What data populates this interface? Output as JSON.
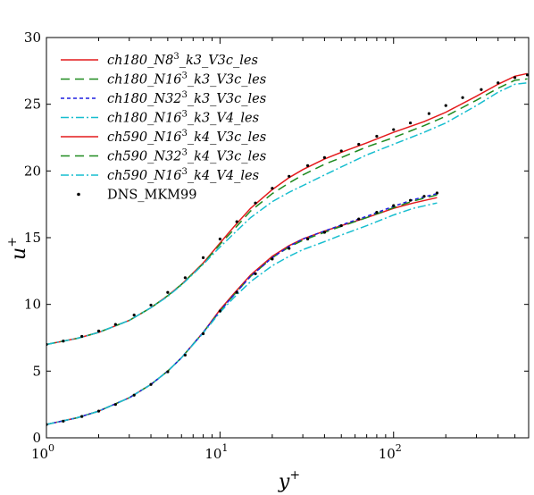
{
  "chart_data": {
    "type": "line",
    "title": "",
    "xlabel": "y",
    "xlabel_sup": "+",
    "ylabel": "u",
    "ylabel_sup": "+",
    "xscale": "log",
    "xlim": [
      1,
      600
    ],
    "ylim": [
      0,
      30
    ],
    "x_tick_labels": [
      {
        "value": 1,
        "base": "10",
        "exp": "0"
      },
      {
        "value": 10,
        "base": "10",
        "exp": "1"
      },
      {
        "value": 100,
        "base": "10",
        "exp": "2"
      }
    ],
    "y_ticks": [
      0,
      5,
      10,
      15,
      20,
      25,
      30
    ],
    "legend_position": "top-left",
    "grid": false,
    "series": [
      {
        "name": "ch180_N8³_k3_V3c_les",
        "color": "#e41a1c",
        "dash": "solid",
        "x": [
          1,
          1.5,
          2,
          3,
          4,
          5,
          6,
          8,
          10,
          12,
          15,
          20,
          25,
          30,
          40,
          50,
          70,
          100,
          130,
          178
        ],
        "y": [
          1.0,
          1.5,
          2.0,
          3.0,
          4.0,
          5.0,
          6.0,
          7.9,
          9.6,
          10.8,
          12.2,
          13.6,
          14.4,
          14.9,
          15.5,
          15.9,
          16.5,
          17.2,
          17.6,
          18.0
        ]
      },
      {
        "name": "ch180_N16³_k3_V3c_les",
        "color": "#1f8a1f",
        "dash": "10,6",
        "x": [
          1,
          1.5,
          2,
          3,
          4,
          5,
          6,
          8,
          10,
          12,
          15,
          20,
          25,
          30,
          40,
          50,
          70,
          100,
          130,
          178
        ],
        "y": [
          1.0,
          1.5,
          2.0,
          3.0,
          4.0,
          5.0,
          6.0,
          7.9,
          9.5,
          10.7,
          12.1,
          13.5,
          14.3,
          14.8,
          15.4,
          15.85,
          16.5,
          17.25,
          17.75,
          18.2
        ]
      },
      {
        "name": "ch180_N32³_k3_V3c_les",
        "color": "#1f1fe0",
        "dash": "4,3",
        "x": [
          1,
          1.5,
          2,
          3,
          4,
          5,
          6,
          8,
          10,
          12,
          15,
          20,
          25,
          30,
          40,
          50,
          70,
          100,
          130,
          178
        ],
        "y": [
          1.0,
          1.5,
          2.0,
          3.0,
          4.0,
          5.0,
          6.0,
          7.9,
          9.5,
          10.7,
          12.1,
          13.5,
          14.35,
          14.9,
          15.5,
          15.95,
          16.6,
          17.35,
          17.85,
          18.3
        ]
      },
      {
        "name": "ch180_N16³_k3_V4_les",
        "color": "#17becf",
        "dash": "9,3,2,3",
        "x": [
          1,
          1.5,
          2,
          3,
          4,
          5,
          6,
          8,
          10,
          12,
          15,
          20,
          25,
          30,
          40,
          50,
          70,
          100,
          130,
          178
        ],
        "y": [
          1.0,
          1.5,
          2.0,
          3.0,
          4.0,
          5.0,
          6.0,
          7.85,
          9.4,
          10.5,
          11.7,
          12.9,
          13.6,
          14.1,
          14.7,
          15.2,
          15.9,
          16.7,
          17.2,
          17.6
        ]
      },
      {
        "name": "ch590_N16³_k4_V3c_les",
        "color": "#e41a1c",
        "dash": "solid",
        "x": [
          1,
          1.5,
          2,
          3,
          4,
          5,
          6,
          8,
          10,
          12,
          15,
          20,
          25,
          30,
          40,
          50,
          70,
          100,
          150,
          200,
          300,
          400,
          500,
          590
        ],
        "y": [
          7.0,
          7.45,
          7.9,
          8.8,
          9.75,
          10.65,
          11.5,
          13.1,
          14.6,
          15.8,
          17.2,
          18.6,
          19.5,
          20.1,
          20.9,
          21.4,
          22.1,
          22.9,
          23.7,
          24.4,
          25.6,
          26.5,
          27.1,
          27.3
        ]
      },
      {
        "name": "ch590_N32³_k4_V3c_les",
        "color": "#1f8a1f",
        "dash": "10,6",
        "x": [
          1,
          1.5,
          2,
          3,
          4,
          5,
          6,
          8,
          10,
          12,
          15,
          20,
          25,
          30,
          40,
          50,
          70,
          100,
          150,
          200,
          300,
          400,
          500,
          590
        ],
        "y": [
          7.0,
          7.45,
          7.9,
          8.8,
          9.75,
          10.65,
          11.5,
          13.05,
          14.5,
          15.6,
          17.0,
          18.3,
          19.1,
          19.7,
          20.5,
          21.0,
          21.8,
          22.5,
          23.4,
          24.1,
          25.3,
          26.2,
          26.8,
          26.9
        ]
      },
      {
        "name": "ch590_N16³_k4_V4_les",
        "color": "#17becf",
        "dash": "9,3,2,3",
        "x": [
          1,
          1.5,
          2,
          3,
          4,
          5,
          6,
          8,
          10,
          12,
          15,
          20,
          25,
          30,
          40,
          50,
          70,
          100,
          150,
          200,
          300,
          400,
          500,
          590
        ],
        "y": [
          7.0,
          7.45,
          7.9,
          8.8,
          9.75,
          10.6,
          11.45,
          13.0,
          14.3,
          15.3,
          16.5,
          17.7,
          18.4,
          18.9,
          19.7,
          20.3,
          21.2,
          22.0,
          22.9,
          23.6,
          24.9,
          25.9,
          26.5,
          26.6
        ]
      },
      {
        "name": "DNS_MKM99",
        "color": "#000000",
        "marker": "dot",
        "points_180": {
          "x": [
            1,
            1.25,
            1.6,
            2.0,
            2.5,
            3.2,
            4,
            5,
            6.3,
            8,
            10,
            12.5,
            16,
            20,
            25,
            32,
            40,
            50,
            63,
            80,
            100,
            125,
            150,
            178
          ],
          "y": [
            1.0,
            1.25,
            1.6,
            2.0,
            2.5,
            3.2,
            4.0,
            4.95,
            6.2,
            7.8,
            9.5,
            10.9,
            12.3,
            13.4,
            14.2,
            14.9,
            15.4,
            15.9,
            16.4,
            16.9,
            17.4,
            17.8,
            18.1,
            18.35
          ]
        },
        "points_590": {
          "x": [
            1,
            1.25,
            1.6,
            2.0,
            2.5,
            3.2,
            4,
            5,
            6.3,
            8,
            10,
            12.5,
            16,
            20,
            25,
            32,
            40,
            50,
            63,
            80,
            100,
            125,
            160,
            200,
            250,
            320,
            400,
            500,
            590
          ],
          "y": [
            7.0,
            7.25,
            7.6,
            8.0,
            8.5,
            9.2,
            9.95,
            10.9,
            12.0,
            13.5,
            14.9,
            16.2,
            17.6,
            18.7,
            19.6,
            20.4,
            21.0,
            21.5,
            22.0,
            22.6,
            23.1,
            23.6,
            24.3,
            24.9,
            25.5,
            26.1,
            26.6,
            27.0,
            27.2
          ]
        }
      }
    ],
    "legend_entries": [
      {
        "pre": "ch180_N8",
        "sup": "3",
        "post": "_k3_V3c_les",
        "italic": true
      },
      {
        "pre": "ch180_N16",
        "sup": "3",
        "post": "_k3_V3c_les",
        "italic": true
      },
      {
        "pre": "ch180_N32",
        "sup": "3",
        "post": "_k3_V3c_les",
        "italic": true
      },
      {
        "pre": "ch180_N16",
        "sup": "3",
        "post": "_k3_V4_les",
        "italic": true
      },
      {
        "pre": "ch590_N16",
        "sup": "3",
        "post": "_k4_V3c_les",
        "italic": true
      },
      {
        "pre": "ch590_N32",
        "sup": "3",
        "post": "_k4_V3c_les",
        "italic": true
      },
      {
        "pre": "ch590_N16",
        "sup": "3",
        "post": "_k4_V4_les",
        "italic": true
      },
      {
        "pre": "DNS_MKM99",
        "sup": "",
        "post": "",
        "italic": false
      }
    ]
  }
}
